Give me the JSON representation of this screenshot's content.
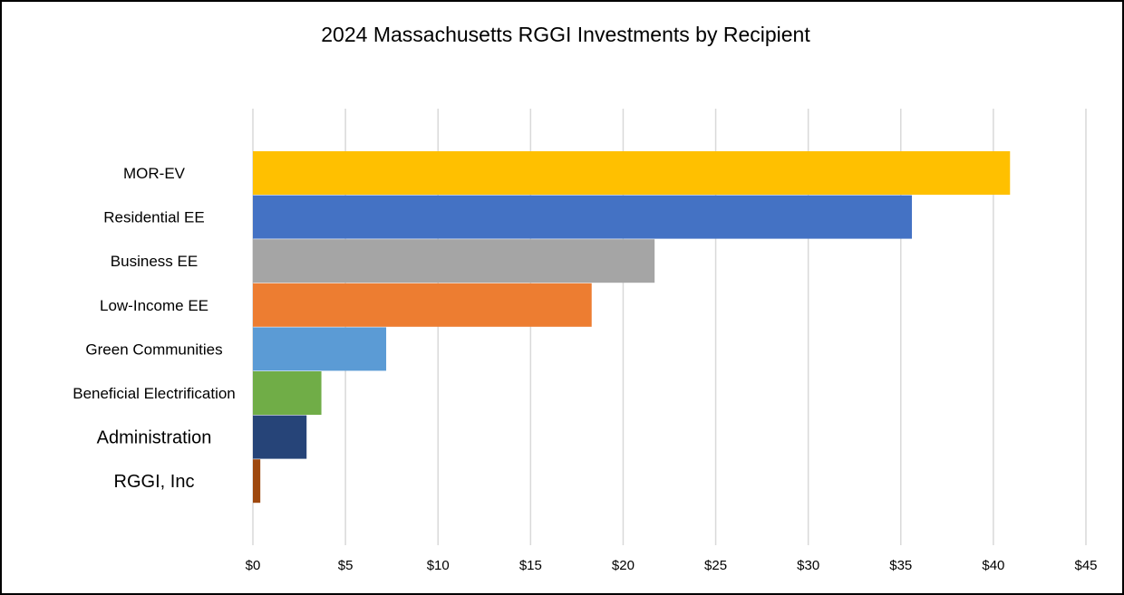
{
  "chart_data": {
    "type": "bar",
    "orientation": "horizontal",
    "title": "2024 Massachusetts RGGI Investments by Recipient",
    "xlabel": "",
    "ylabel": "",
    "categories": [
      "MOR-EV",
      "Residential EE",
      "Business EE",
      "Low-Income EE",
      "Green Communities",
      "Beneficial Electrification",
      "Administration",
      "RGGI, Inc"
    ],
    "values": [
      40.9,
      35.6,
      21.7,
      18.3,
      7.2,
      3.7,
      2.9,
      0.4
    ],
    "colors": [
      "#FFC000",
      "#4472C4",
      "#A5A5A5",
      "#ED7D31",
      "#5B9BD5",
      "#70AD47",
      "#264478",
      "#9E480E"
    ],
    "xlim": [
      0,
      45
    ],
    "x_ticks": [
      0,
      5,
      10,
      15,
      20,
      25,
      30,
      35,
      40,
      45
    ],
    "x_tick_labels": [
      "$0",
      "$5",
      "$10",
      "$15",
      "$20",
      "$25",
      "$30",
      "$35",
      "$40",
      "$45"
    ],
    "grid": "vertical",
    "legend": "none"
  }
}
